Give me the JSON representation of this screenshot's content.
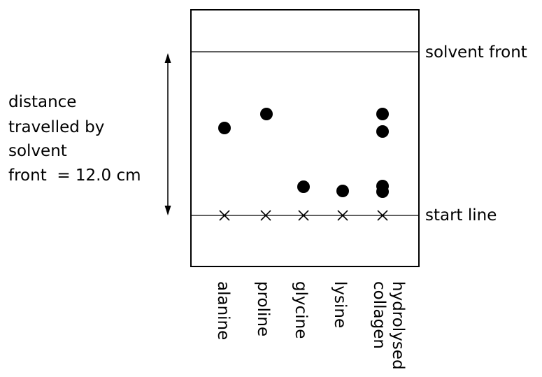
{
  "labels": {
    "solvent_front": "solvent front",
    "start_line": "start line",
    "distance_line1": "distance",
    "distance_line2": "travelled by",
    "distance_line3": "solvent",
    "distance_line4": "front  = 12.0 cm"
  },
  "lanes": [
    {
      "name": "alanine"
    },
    {
      "name": "proline"
    },
    {
      "name": "glycine"
    },
    {
      "name": "lysine"
    },
    {
      "name": "collagen",
      "name_line2": "hydrolysed"
    }
  ],
  "colors": {
    "ink": "#000000",
    "paper": "#ffffff"
  }
}
